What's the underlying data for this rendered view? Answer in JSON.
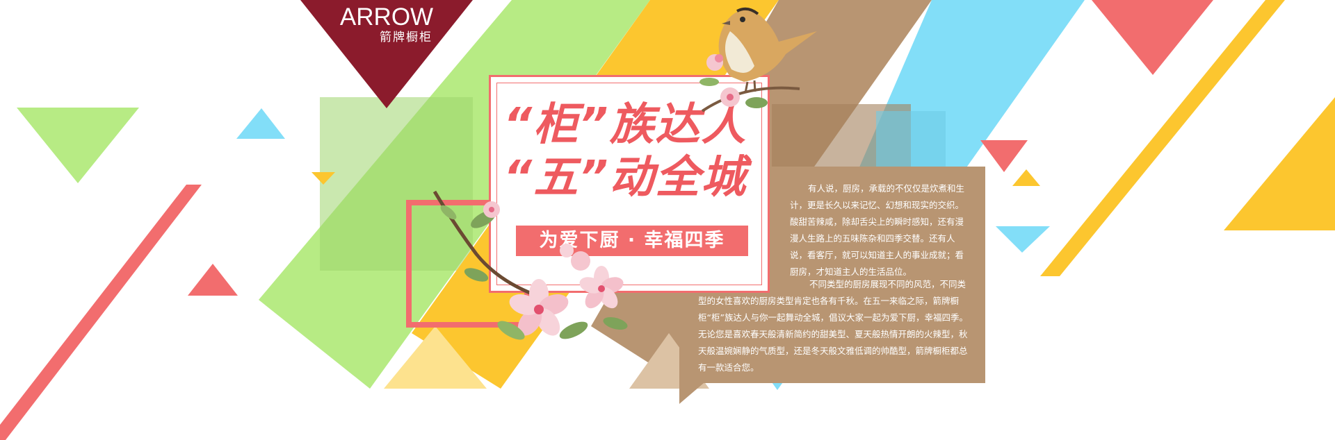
{
  "brand": {
    "name": "ARROW",
    "subtitle": "箭牌橱柜"
  },
  "headline": {
    "line1": "“柜”族达人",
    "line2": "“五”动全城",
    "slogan": "为爱下厨 · 幸福四季"
  },
  "description": {
    "paragraph1": "有人说，厨房，承载的不仅仅是炊煮和生计，更是长久以来记忆、幻想和现实的交织。酸甜苦辣咸，除却舌尖上的瞬时感知，还有漫漫人生路上的五味陈杂和四季交替。还有人说，看客厅，就可以知道主人的事业成就；看厨房，才知道主人的生活品位。",
    "paragraph2": "不同类型的厨房展现不同的风范，不同类型的女性喜欢的厨房类型肯定也各有千秋。在五一来临之际，箭牌橱柜“柜”族达人与你一起舞动全城，倡议大家一起为爱下厨，幸福四季。无论您是喜欢春天般清新简约的甜美型、夏天般热情开朗的火辣型，秋天般温婉娴静的气质型，还是冬天般文雅低调的帅酷型，箭牌橱柜都总有一款适合您。"
  },
  "colors": {
    "brand": "#8b1b2c",
    "green": "#b7eb84",
    "yellow": "#fcc62f",
    "tan": "#b89572",
    "sky": "#82def8",
    "coral": "#f26d6e"
  },
  "icons": {
    "bird": "bird-illustration",
    "flower": "blossom-branch-illustration"
  }
}
